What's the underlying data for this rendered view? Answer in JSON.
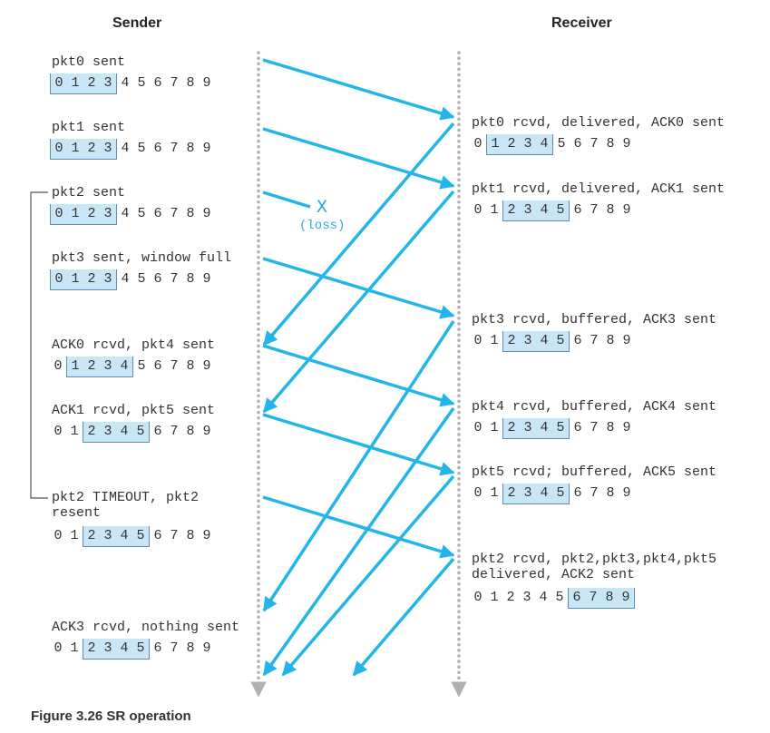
{
  "headers": {
    "sender": "Sender",
    "receiver": "Receiver"
  },
  "sequence": [
    "0",
    "1",
    "2",
    "3",
    "4",
    "5",
    "6",
    "7",
    "8",
    "9"
  ],
  "loss": {
    "mark": "X",
    "label": "(loss)"
  },
  "sender_events": [
    {
      "label": "pkt0 sent",
      "window": [
        0,
        3
      ]
    },
    {
      "label": "pkt1 sent",
      "window": [
        0,
        3
      ]
    },
    {
      "label": "pkt2 sent",
      "window": [
        0,
        3
      ]
    },
    {
      "label": "pkt3 sent, window full",
      "window": [
        0,
        3
      ]
    },
    {
      "label": "ACK0 rcvd, pkt4 sent",
      "window": [
        1,
        4
      ]
    },
    {
      "label": "ACK1 rcvd, pkt5 sent",
      "window": [
        2,
        5
      ]
    },
    {
      "label": "pkt2 TIMEOUT, pkt2\nresent",
      "window": [
        2,
        5
      ]
    },
    {
      "label": "ACK3 rcvd, nothing sent",
      "window": [
        2,
        5
      ]
    }
  ],
  "receiver_events": [
    {
      "label": "pkt0 rcvd, delivered, ACK0 sent",
      "window": [
        1,
        4
      ]
    },
    {
      "label": "pkt1 rcvd, delivered, ACK1 sent",
      "window": [
        2,
        5
      ]
    },
    {
      "label": "pkt3 rcvd, buffered, ACK3 sent",
      "window": [
        2,
        5
      ]
    },
    {
      "label": "pkt4 rcvd, buffered, ACK4 sent",
      "window": [
        2,
        5
      ]
    },
    {
      "label": "pkt5 rcvd; buffered, ACK5 sent",
      "window": [
        2,
        5
      ]
    },
    {
      "label": "pkt2 rcvd, pkt2,pkt3,pkt4,pkt5\ndelivered, ACK2 sent",
      "window": [
        6,
        9
      ]
    }
  ],
  "caption": "Figure 3.26 SR operation",
  "colors": {
    "arrow": "#22b5e8",
    "timeline": "#b0b0b0",
    "window_fill": "#c9e6f7",
    "window_border": "#5b8fb5"
  }
}
